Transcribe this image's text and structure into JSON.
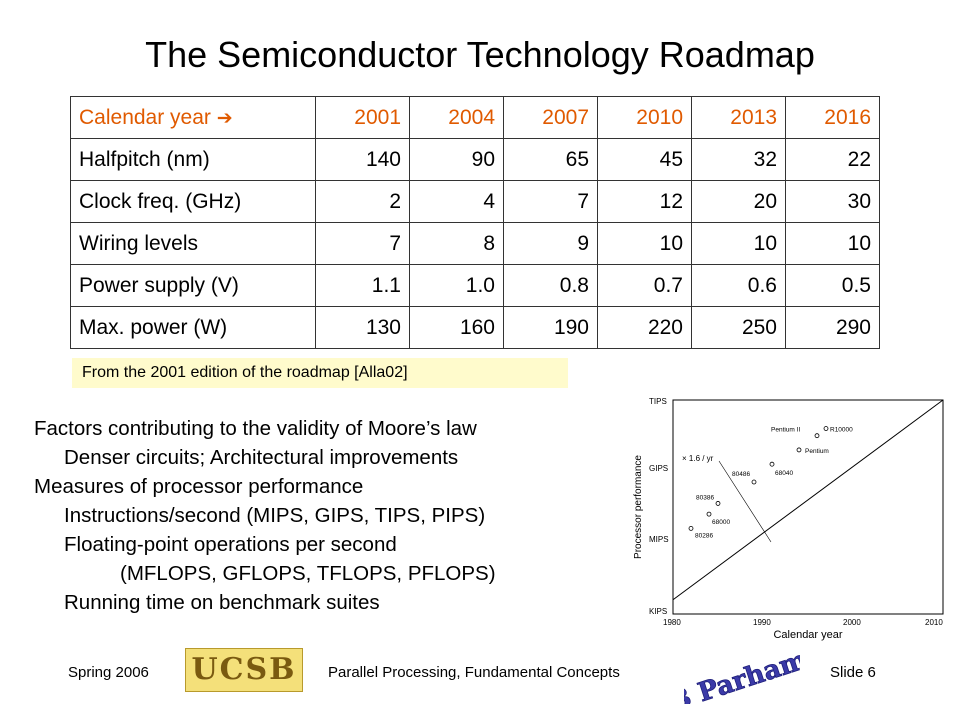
{
  "slide": {
    "title": "The Semiconductor Technology Roadmap",
    "table": {
      "header_label": "Calendar year",
      "years": [
        "2001",
        "2004",
        "2007",
        "2010",
        "2013",
        "2016"
      ],
      "rows": [
        {
          "label": "Halfpitch (nm)",
          "values": [
            "140",
            "90",
            "65",
            "45",
            "32",
            "22"
          ]
        },
        {
          "label": "Clock freq. (GHz)",
          "values": [
            "2",
            "4",
            "7",
            "12",
            "20",
            "30"
          ]
        },
        {
          "label": "Wiring levels",
          "values": [
            "7",
            "8",
            "9",
            "10",
            "10",
            "10"
          ]
        },
        {
          "label": "Power supply (V)",
          "values": [
            "1.1",
            "1.0",
            "0.8",
            "0.7",
            "0.6",
            "0.5"
          ]
        },
        {
          "label": "Max. power (W)",
          "values": [
            "130",
            "160",
            "190",
            "220",
            "250",
            "290"
          ]
        }
      ]
    },
    "source_note": "From the 2001 edition of the roadmap [Alla02]",
    "bullets": [
      {
        "level": 1,
        "text": "Factors contributing to the validity of Moore’s law"
      },
      {
        "level": 2,
        "text": "Denser circuits; Architectural improvements"
      },
      {
        "level": 1,
        "text": "Measures of processor performance"
      },
      {
        "level": 2,
        "text": "Instructions/second (MIPS, GIPS, TIPS, PIPS)"
      },
      {
        "level": 2,
        "text": "Floating-point operations per second"
      },
      {
        "level": 3,
        "text": "(MFLOPS, GFLOPS, TFLOPS, PFLOPS)"
      },
      {
        "level": 2,
        "text": "Running time on benchmark suites"
      }
    ],
    "chart": {
      "y_ticks": [
        "TIPS",
        "GIPS",
        "MIPS",
        "KIPS"
      ],
      "x_ticks": [
        "1980",
        "1990",
        "2000",
        "2010"
      ],
      "xlabel": "Calendar year",
      "ylabel": "Processor performance",
      "trend_label": "× 1.6 / yr",
      "point_labels": [
        "80286",
        "68000",
        "80386",
        "80486",
        "68040",
        "Pentium",
        "Pentium II",
        "R10000"
      ]
    },
    "footer": {
      "left": "Spring 2006",
      "logo": "UCSB",
      "center": "Parallel Processing, Fundamental Concepts",
      "right": "Slide 6",
      "signature": "B Parhami"
    },
    "colors": {
      "header_text": "#e05a00",
      "note_bg": "#fffbcc",
      "logo_bg": "#f4e07a",
      "sig": "#3b3aa8"
    }
  },
  "chart_data": {
    "type": "scatter",
    "title": "",
    "xlabel": "Calendar year",
    "ylabel": "Processor performance",
    "xlim": [
      1980,
      2010
    ],
    "y_ticks": [
      "KIPS",
      "MIPS",
      "GIPS",
      "TIPS"
    ],
    "y_scale": "log (10^3 per decade of ticks)",
    "trend": {
      "label": "× 1.6 / yr",
      "from": [
        1980,
        0.2
      ],
      "to": [
        2010,
        3.0
      ]
    },
    "points": [
      {
        "label": "80286",
        "x": 1982,
        "y": 1.2
      },
      {
        "label": "68000",
        "x": 1984,
        "y": 1.4
      },
      {
        "label": "80386",
        "x": 1985,
        "y": 1.55
      },
      {
        "label": "80486",
        "x": 1989,
        "y": 1.85
      },
      {
        "label": "68040",
        "x": 1991,
        "y": 2.1
      },
      {
        "label": "Pentium",
        "x": 1994,
        "y": 2.3
      },
      {
        "label": "Pentium II",
        "x": 1996,
        "y": 2.5
      },
      {
        "label": "R10000",
        "x": 1997,
        "y": 2.6
      }
    ]
  }
}
